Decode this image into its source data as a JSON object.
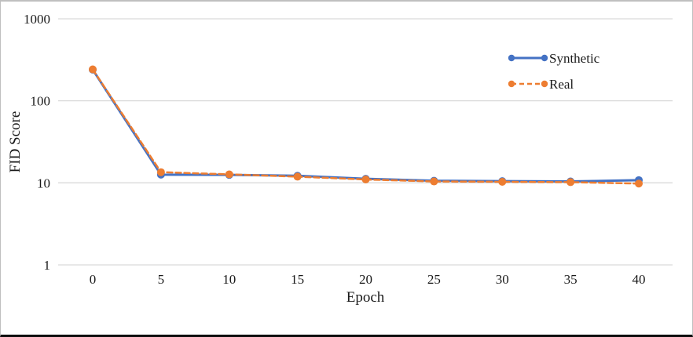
{
  "chart_data": {
    "type": "line",
    "x": [
      0,
      5,
      10,
      15,
      20,
      25,
      30,
      35,
      40
    ],
    "x_tick_labels": [
      "0",
      "5",
      "10",
      "15",
      "20",
      "25",
      "30",
      "35",
      "40"
    ],
    "series": [
      {
        "name": "Synthetic",
        "color": "#4472C4",
        "style": "solid",
        "values": [
          240,
          12.6,
          12.5,
          12.2,
          11.2,
          10.6,
          10.5,
          10.4,
          10.8
        ]
      },
      {
        "name": "Real",
        "color": "#ED7D31",
        "style": "dashed",
        "values": [
          242,
          13.5,
          12.7,
          11.9,
          11.0,
          10.4,
          10.3,
          10.2,
          9.8
        ]
      }
    ],
    "title": "",
    "xlabel": "Epoch",
    "ylabel": "FID Score",
    "yscale": "log",
    "yticks": [
      1,
      10,
      100,
      1000
    ],
    "ytick_labels": [
      "1",
      "10",
      "100",
      "1000"
    ],
    "ylim": [
      1,
      1000
    ],
    "grid": "horizontal",
    "gridline_color": "#D9D9D9",
    "legend_position": "upper-right"
  }
}
